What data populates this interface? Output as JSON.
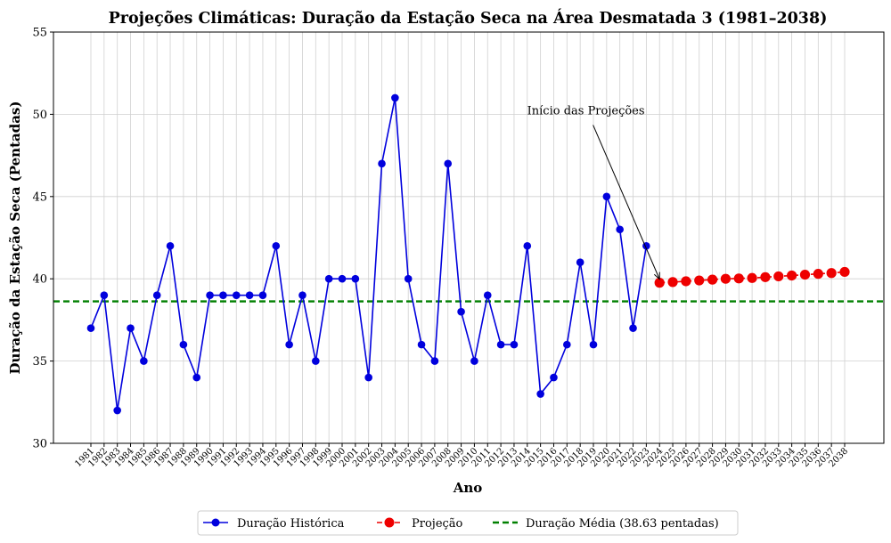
{
  "chart_data": {
    "type": "line",
    "title": "Projeções Climáticas: Duração da Estação Seca na Área Desmatada 3 (1981–2038)",
    "xlabel": "Ano",
    "ylabel": "Duração da Estação Seca (Pentadas)",
    "ylim": [
      30,
      55
    ],
    "yticks": [
      "30",
      "35",
      "40",
      "45",
      "50",
      "55"
    ],
    "grid": true,
    "legend_position": "bottom-center",
    "series": [
      {
        "name": "Duração Histórica",
        "color": "#0000dd",
        "style": "solid-line-markers",
        "x": [
          1981,
          1982,
          1983,
          1984,
          1985,
          1986,
          1987,
          1988,
          1989,
          1990,
          1991,
          1992,
          1993,
          1994,
          1995,
          1996,
          1997,
          1998,
          1999,
          2000,
          2001,
          2002,
          2003,
          2004,
          2005,
          2006,
          2007,
          2008,
          2009,
          2010,
          2011,
          2012,
          2013,
          2014,
          2015,
          2016,
          2017,
          2018,
          2019,
          2020,
          2021,
          2022,
          2023
        ],
        "values": [
          37,
          39,
          32,
          37,
          35,
          39,
          42,
          36,
          34,
          39,
          39,
          39,
          39,
          39,
          42,
          36,
          39,
          35,
          40,
          40,
          40,
          34,
          47,
          51,
          40,
          36,
          35,
          47,
          38,
          35,
          39,
          36,
          36,
          42,
          33,
          34,
          36,
          41,
          36,
          45,
          43,
          37,
          42
        ]
      },
      {
        "name": "Projeção",
        "color": "#ee0000",
        "style": "dashed-line-markers",
        "x": [
          2024,
          2025,
          2026,
          2027,
          2028,
          2029,
          2030,
          2031,
          2032,
          2033,
          2034,
          2035,
          2036,
          2037,
          2038
        ],
        "values": [
          39.76,
          39.8,
          39.85,
          39.9,
          39.95,
          40.0,
          40.02,
          40.05,
          40.1,
          40.15,
          40.2,
          40.25,
          40.3,
          40.35,
          40.42
        ]
      }
    ],
    "reference_line": {
      "name": "Duração Média (38.63 pentadas)",
      "value": 38.63,
      "color": "#008000",
      "style": "dashed"
    },
    "annotation": {
      "text": "Início das Projeções",
      "target_x": 2024,
      "target_y": 39.76,
      "text_x": 2015,
      "text_y": 50
    }
  }
}
